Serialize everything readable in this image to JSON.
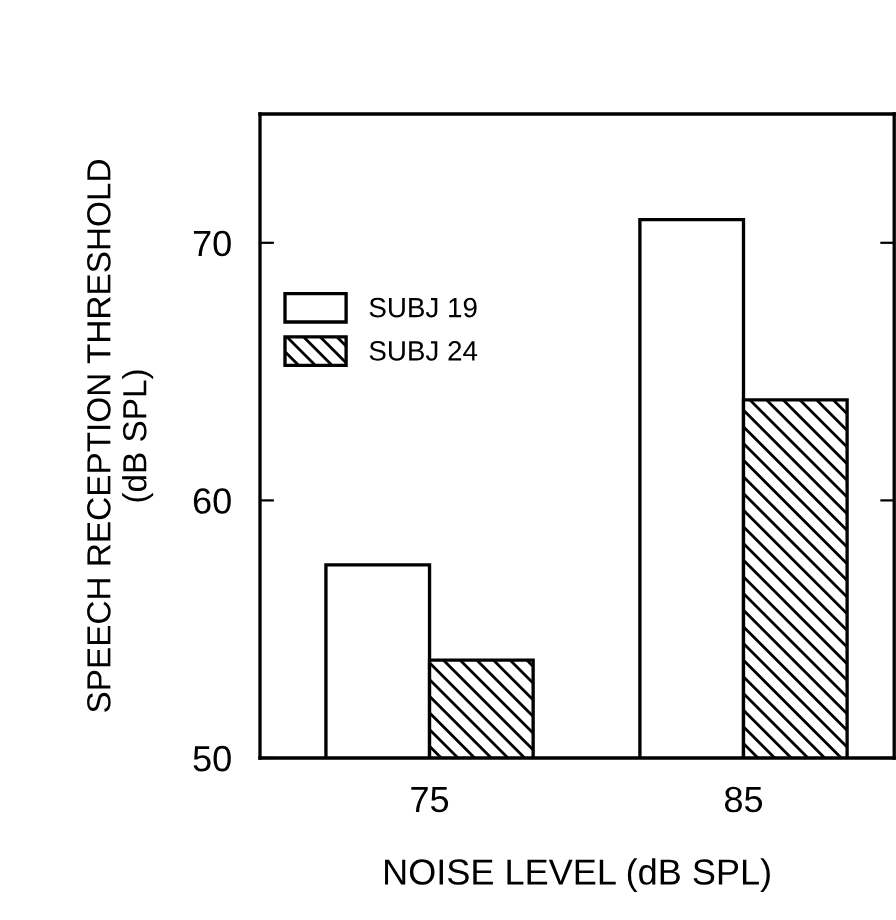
{
  "chart_data": {
    "type": "bar",
    "xlabel": "NOISE LEVEL (dB SPL)",
    "ylabel": "SPEECH RECEPTION THRESHOLD\n(dB SPL)",
    "categories": [
      "75",
      "85"
    ],
    "series": [
      {
        "name": "SUBJ 19",
        "color": "#ffffff",
        "values": [
          57.5,
          70.9
        ]
      },
      {
        "name": "SUBJ 24",
        "color": "#000000",
        "values": [
          53.8,
          63.9
        ]
      }
    ],
    "ylim": [
      50,
      75
    ],
    "yticks": [
      50,
      60,
      70
    ],
    "grid": false,
    "legend": "top left"
  }
}
